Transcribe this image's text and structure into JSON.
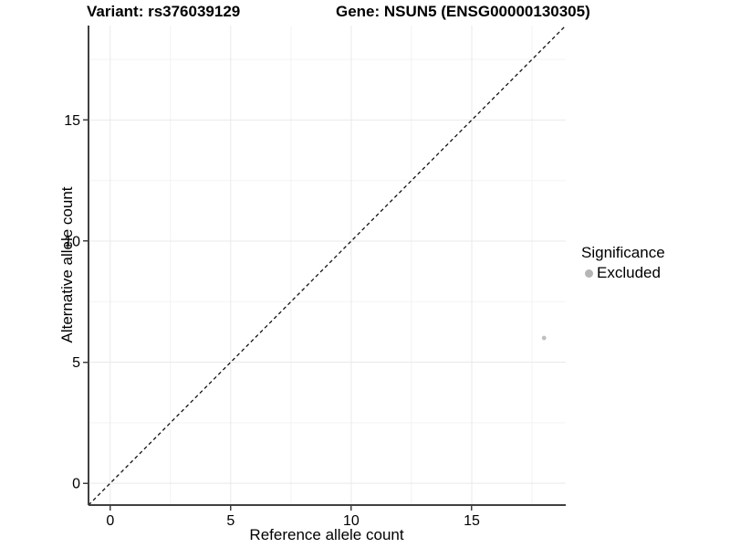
{
  "title": {
    "variant": "Variant: rs376039129",
    "gene": "Gene: NSUN5 (ENSG00000130305)"
  },
  "chart_data": {
    "type": "scatter",
    "title": "Variant: rs376039129 / Gene: NSUN5 (ENSG00000130305)",
    "xlabel": "Reference allele count",
    "ylabel": "Alternative allele count",
    "xlim": [
      -0.9,
      18.9
    ],
    "ylim": [
      -0.9,
      18.9
    ],
    "x_ticks": [
      0,
      5,
      10,
      15
    ],
    "y_ticks": [
      0,
      5,
      10,
      15
    ],
    "x_minor_ticks": [
      2.5,
      7.5,
      12.5,
      17.5
    ],
    "y_minor_ticks": [
      2.5,
      7.5,
      12.5,
      17.5
    ],
    "grid": "major+minor",
    "series": [
      {
        "name": "Excluded",
        "color": "#bebebe",
        "point_radius": 2.4,
        "points": [
          {
            "x": 18,
            "y": 6
          }
        ]
      }
    ],
    "reference_line": {
      "label": "identity y = x",
      "style": "dashed",
      "color": "#111111"
    },
    "legend": {
      "position": "right",
      "title": "Significance",
      "items": [
        {
          "label": "Excluded",
          "color": "#b5b5b5"
        }
      ]
    },
    "colors": {
      "axis_line": "#404040",
      "tick_mark": "#404040",
      "grid_major": "#e9e9e9",
      "grid_minor": "#f3f3f3",
      "background": "#ffffff"
    }
  }
}
